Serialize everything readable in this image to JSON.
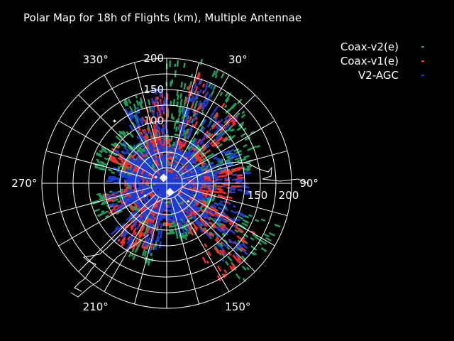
{
  "chart_data": {
    "type": "polar-scatter",
    "title": "Polar Map for 18h of Flights (km), Multiple Antennae",
    "theta_direction": "clockwise",
    "theta_zero": "north",
    "r_ticks": [
      {
        "value": 100,
        "label": "100"
      },
      {
        "value": 150,
        "label": "150"
      },
      {
        "value": 200,
        "label": "200"
      }
    ],
    "r_axis_label_angle_deg": 0,
    "r_max": 200,
    "theta_ticks": [
      {
        "angle": 30,
        "label": "30°"
      },
      {
        "angle": 90,
        "label": "90°"
      },
      {
        "angle": 150,
        "label": "150°"
      },
      {
        "angle": 210,
        "label": "210°"
      },
      {
        "angle": 270,
        "label": "270°"
      },
      {
        "angle": 330,
        "label": "330°"
      }
    ],
    "spoke_step_deg": 15,
    "ring_step_km": 25,
    "legend_position": "top-right",
    "series": [
      {
        "name": "Coax-v2(e)",
        "color": "#1e9e5a",
        "lobes": [
          [
            20,
            200,
            8
          ],
          [
            40,
            180,
            10
          ],
          [
            60,
            160,
            12
          ],
          [
            75,
            140,
            8
          ],
          [
            120,
            190,
            10
          ],
          [
            135,
            200,
            10
          ],
          [
            160,
            90,
            10
          ],
          [
            200,
            130,
            10
          ],
          [
            250,
            120,
            12
          ],
          [
            290,
            120,
            10
          ],
          [
            315,
            110,
            10
          ],
          [
            340,
            150,
            10
          ],
          [
            5,
            190,
            6
          ]
        ]
      },
      {
        "name": "Coax-v1(e)",
        "color": "#ff2a2a",
        "lobes": [
          [
            20,
            180,
            7
          ],
          [
            45,
            160,
            9
          ],
          [
            85,
            120,
            8
          ],
          [
            100,
            110,
            8
          ],
          [
            125,
            170,
            8
          ],
          [
            145,
            175,
            9
          ],
          [
            200,
            110,
            8
          ],
          [
            215,
            120,
            9
          ],
          [
            250,
            100,
            10
          ],
          [
            300,
            100,
            8
          ],
          [
            340,
            120,
            8
          ],
          [
            355,
            140,
            6
          ]
        ]
      },
      {
        "name": "V2-AGC",
        "color": "#1a3cd6",
        "lobes": [
          [
            20,
            170,
            7
          ],
          [
            40,
            150,
            9
          ],
          [
            70,
            120,
            10
          ],
          [
            90,
            130,
            8
          ],
          [
            115,
            130,
            9
          ],
          [
            135,
            170,
            9
          ],
          [
            160,
            80,
            10
          ],
          [
            195,
            110,
            9
          ],
          [
            220,
            120,
            9
          ],
          [
            250,
            95,
            10
          ],
          [
            280,
            90,
            10
          ],
          [
            310,
            95,
            10
          ],
          [
            335,
            130,
            8
          ],
          [
            355,
            150,
            6
          ]
        ]
      }
    ],
    "stations": [
      {
        "r": 10,
        "theta": 330,
        "size": "large"
      },
      {
        "r": 15,
        "theta": 160,
        "size": "large"
      },
      {
        "r": 130,
        "theta": 320,
        "size": "small"
      },
      {
        "r": 40,
        "theta": 240,
        "size": "small"
      },
      {
        "r": 45,
        "theta": 130,
        "size": "small"
      },
      {
        "r": 70,
        "theta": 150,
        "size": "small"
      },
      {
        "r": 20,
        "theta": 300,
        "size": "small"
      }
    ]
  }
}
